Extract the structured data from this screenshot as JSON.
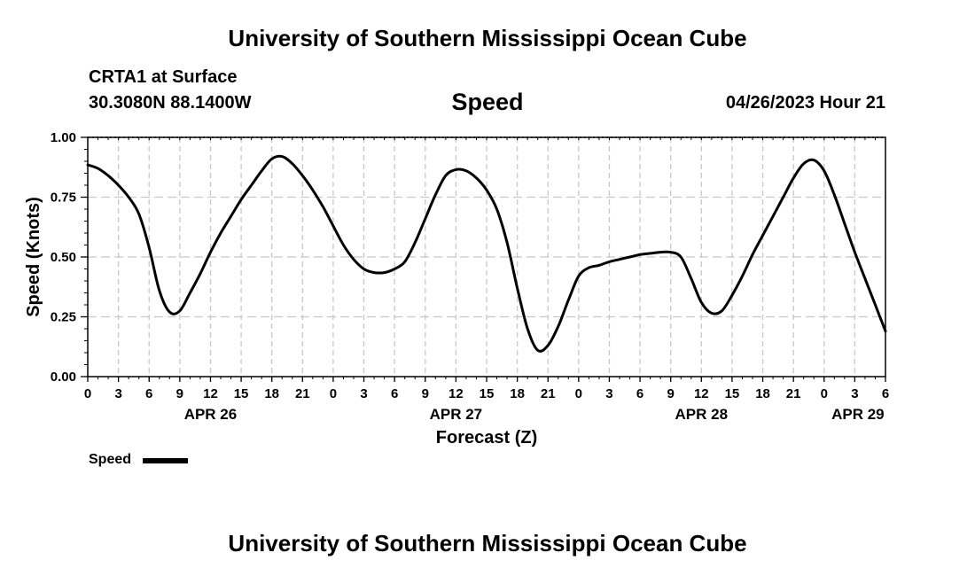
{
  "header": {
    "organization": "University of Southern Mississippi Ocean Cube",
    "station": "CRTA1 at Surface",
    "coordinates": "30.3080N  88.1400W",
    "variable": "Speed",
    "datetime": "04/26/2023 Hour 21"
  },
  "footer": {
    "organization": "University of Southern Mississippi Ocean Cube"
  },
  "chart_data": {
    "type": "line",
    "title": "Speed",
    "xlabel": "Forecast (Z)",
    "ylabel": "Speed (Knots)",
    "x_unit": "hours from 2023-04-26 00Z",
    "xlim": [
      0,
      78
    ],
    "ylim": [
      0,
      1.0
    ],
    "grid": true,
    "legend_position": "bottom-left",
    "x_ticks": [
      {
        "x": 0,
        "label": "0"
      },
      {
        "x": 3,
        "label": "3"
      },
      {
        "x": 6,
        "label": "6"
      },
      {
        "x": 9,
        "label": "9"
      },
      {
        "x": 12,
        "label": "12"
      },
      {
        "x": 15,
        "label": "15"
      },
      {
        "x": 18,
        "label": "18"
      },
      {
        "x": 21,
        "label": "21"
      },
      {
        "x": 24,
        "label": "0"
      },
      {
        "x": 27,
        "label": "3"
      },
      {
        "x": 30,
        "label": "6"
      },
      {
        "x": 33,
        "label": "9"
      },
      {
        "x": 36,
        "label": "12"
      },
      {
        "x": 39,
        "label": "15"
      },
      {
        "x": 42,
        "label": "18"
      },
      {
        "x": 45,
        "label": "21"
      },
      {
        "x": 48,
        "label": "0"
      },
      {
        "x": 51,
        "label": "3"
      },
      {
        "x": 54,
        "label": "6"
      },
      {
        "x": 57,
        "label": "9"
      },
      {
        "x": 60,
        "label": "12"
      },
      {
        "x": 63,
        "label": "15"
      },
      {
        "x": 66,
        "label": "18"
      },
      {
        "x": 69,
        "label": "21"
      },
      {
        "x": 72,
        "label": "0"
      },
      {
        "x": 75,
        "label": "3"
      },
      {
        "x": 78,
        "label": "6"
      }
    ],
    "date_labels": [
      {
        "x": 12,
        "label": "APR 26"
      },
      {
        "x": 36,
        "label": "APR 27"
      },
      {
        "x": 60,
        "label": "APR 28"
      },
      {
        "x": 75.3,
        "label": "APR 29"
      }
    ],
    "y_ticks": [
      {
        "y": 0.0,
        "label": "0.00"
      },
      {
        "y": 0.25,
        "label": "0.25"
      },
      {
        "y": 0.5,
        "label": "0.50"
      },
      {
        "y": 0.75,
        "label": "0.75"
      },
      {
        "y": 1.0,
        "label": "1.00"
      }
    ],
    "series": [
      {
        "name": "Speed",
        "color": "#000000",
        "x": [
          0,
          1,
          2,
          3,
          4,
          5,
          6,
          7,
          8,
          9,
          10,
          11,
          12,
          13,
          14,
          15,
          16,
          17,
          18,
          19,
          20,
          21,
          22,
          23,
          24,
          25,
          26,
          27,
          28,
          29,
          30,
          31,
          32,
          33,
          34,
          35,
          36,
          37,
          38,
          39,
          40,
          41,
          42,
          43,
          44,
          45,
          46,
          47,
          48,
          49,
          50,
          51,
          52,
          53,
          54,
          55,
          56,
          57,
          58,
          59,
          60,
          61,
          62,
          63,
          64,
          65,
          66,
          67,
          68,
          69,
          70,
          71,
          72,
          73,
          74,
          75,
          76,
          77,
          78
        ],
        "values": [
          0.885,
          0.87,
          0.84,
          0.8,
          0.75,
          0.68,
          0.54,
          0.36,
          0.27,
          0.275,
          0.35,
          0.43,
          0.52,
          0.6,
          0.67,
          0.74,
          0.8,
          0.86,
          0.91,
          0.92,
          0.89,
          0.84,
          0.78,
          0.71,
          0.63,
          0.55,
          0.49,
          0.45,
          0.435,
          0.435,
          0.45,
          0.48,
          0.56,
          0.66,
          0.76,
          0.84,
          0.865,
          0.86,
          0.83,
          0.78,
          0.7,
          0.56,
          0.37,
          0.2,
          0.11,
          0.13,
          0.21,
          0.32,
          0.42,
          0.455,
          0.465,
          0.48,
          0.49,
          0.5,
          0.51,
          0.515,
          0.52,
          0.52,
          0.5,
          0.41,
          0.31,
          0.265,
          0.275,
          0.34,
          0.42,
          0.51,
          0.59,
          0.67,
          0.75,
          0.83,
          0.89,
          0.905,
          0.86,
          0.76,
          0.64,
          0.52,
          0.41,
          0.3,
          0.19
        ]
      }
    ]
  }
}
